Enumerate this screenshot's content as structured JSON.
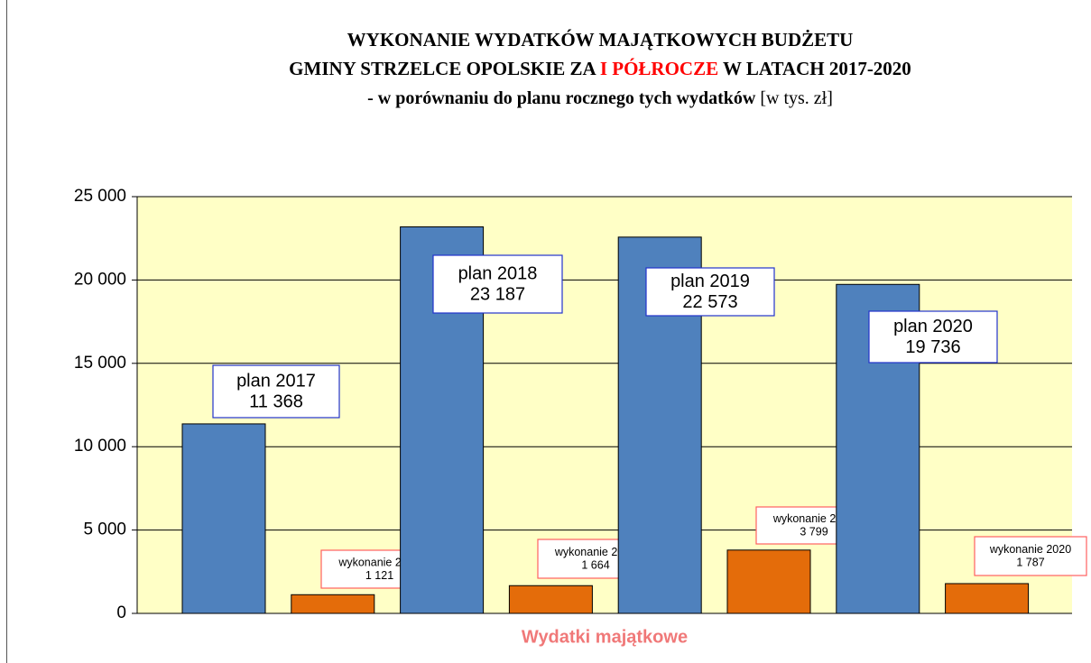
{
  "chart_data": {
    "type": "bar",
    "title": [
      "WYKONANIE WYDATKÓW MAJĄTKOWYCH BUDŻETU",
      "GMINY STRZELCE OPOLSKIE ZA ",
      "I PÓŁROCZE",
      " W LATACH 2017-2020"
    ],
    "subtitle": [
      "-  w porównaniu do planu rocznego tych wydatków ",
      "[w tys. zł]"
    ],
    "x_label": "Wydatki majątkowe",
    "categories": [
      "Wydatki majątkowe"
    ],
    "series": [
      {
        "name": "plan 2017",
        "color": "#4f81bd",
        "values": [
          11368
        ],
        "value_labels": [
          "11 368"
        ]
      },
      {
        "name": "wykonanie 2017",
        "color": "#e46c0a",
        "values": [
          1121
        ],
        "value_labels": [
          "1 121"
        ]
      },
      {
        "name": "plan 2018",
        "color": "#4f81bd",
        "values": [
          23187
        ],
        "value_labels": [
          "23 187"
        ]
      },
      {
        "name": "wykonanie 2018",
        "color": "#e46c0a",
        "values": [
          1664
        ],
        "value_labels": [
          "1 664"
        ]
      },
      {
        "name": "plan 2019",
        "color": "#4f81bd",
        "values": [
          22573
        ],
        "value_labels": [
          "22 573"
        ]
      },
      {
        "name": "wykonanie 2019",
        "color": "#e46c0a",
        "values": [
          3799
        ],
        "value_labels": [
          "3 799"
        ]
      },
      {
        "name": "plan 2020",
        "color": "#4f81bd",
        "values": [
          19736
        ],
        "value_labels": [
          "19 736"
        ]
      },
      {
        "name": "wykonanie 2020",
        "color": "#e46c0a",
        "values": [
          1787
        ],
        "value_labels": [
          "1 787"
        ]
      }
    ],
    "ylim": [
      0,
      25000
    ],
    "yticks": [
      0,
      {
        "value": 5000,
        "label": "5 000"
      },
      {
        "value": 10000,
        "label": "10 000"
      },
      {
        "value": 15000,
        "label": "15 000"
      },
      {
        "value": 20000,
        "label": "20 000"
      },
      {
        "value": 25000,
        "label": "25 000"
      }
    ],
    "grid": true,
    "plot_background": "#ffffc6"
  }
}
